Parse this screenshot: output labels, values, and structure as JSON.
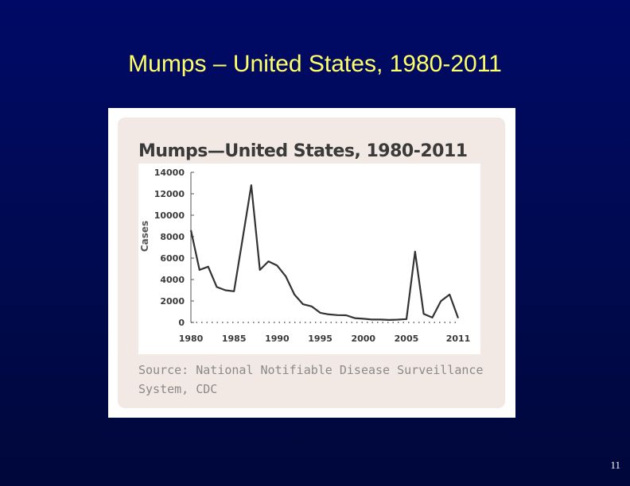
{
  "slide": {
    "title": "Mumps – United States, 1980-2011",
    "page_number": "11"
  },
  "figure": {
    "source_line1": "Source: National Notifiable Disease Surveillance",
    "source_line2": "System, CDC"
  },
  "colors": {
    "background": "#000a4f",
    "title": "#ffff66",
    "panel": "#f2e8e4",
    "line": "#333333"
  },
  "chart_data": {
    "type": "line",
    "title": "Mumps—United States, 1980-2011",
    "xlabel": "",
    "ylabel": "Cases",
    "xlim": [
      1980,
      2011
    ],
    "ylim": [
      0,
      14000
    ],
    "yticks": [
      0,
      2000,
      4000,
      6000,
      8000,
      10000,
      12000,
      14000
    ],
    "xticks": [
      1980,
      1985,
      1990,
      1995,
      2000,
      2005,
      2011
    ],
    "grid": false,
    "series": [
      {
        "name": "",
        "x": [
          1980,
          1981,
          1982,
          1983,
          1984,
          1985,
          1986,
          1987,
          1988,
          1989,
          1990,
          1991,
          1992,
          1993,
          1994,
          1995,
          1996,
          1997,
          1998,
          1999,
          2000,
          2001,
          2002,
          2003,
          2004,
          2005,
          2006,
          2007,
          2008,
          2009,
          2010,
          2011
        ],
        "y": [
          8600,
          4900,
          5200,
          3300,
          3000,
          2900,
          7800,
          12800,
          4900,
          5700,
          5300,
          4300,
          2600,
          1700,
          1500,
          900,
          750,
          680,
          670,
          400,
          340,
          270,
          270,
          230,
          260,
          310,
          6600,
          800,
          450,
          1990,
          2600,
          400
        ]
      }
    ]
  }
}
